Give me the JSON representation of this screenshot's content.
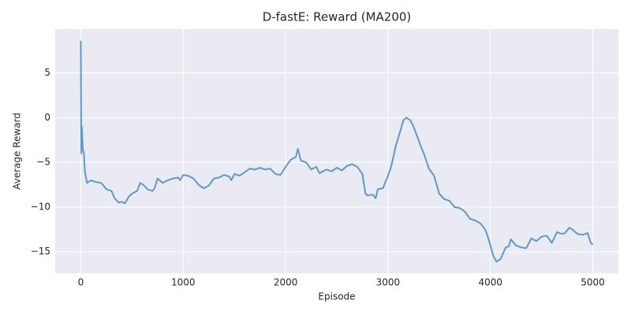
{
  "chart_data": {
    "type": "line",
    "title": "D-fastE: Reward (MA200)",
    "x_label": "Episode",
    "y_label": "Average Reward",
    "x": [
      0,
      5,
      10,
      20,
      30,
      40,
      60,
      100,
      150,
      200,
      250,
      300,
      330,
      370,
      400,
      430,
      470,
      500,
      550,
      580,
      620,
      650,
      700,
      720,
      750,
      800,
      850,
      900,
      950,
      970,
      1000,
      1050,
      1100,
      1150,
      1200,
      1250,
      1300,
      1350,
      1400,
      1450,
      1470,
      1500,
      1550,
      1600,
      1650,
      1700,
      1750,
      1800,
      1850,
      1900,
      1950,
      2000,
      2050,
      2100,
      2120,
      2150,
      2200,
      2250,
      2300,
      2330,
      2400,
      2450,
      2500,
      2550,
      2600,
      2650,
      2700,
      2750,
      2780,
      2800,
      2850,
      2880,
      2900,
      2950,
      3000,
      3030,
      3080,
      3120,
      3150,
      3180,
      3220,
      3260,
      3330,
      3350,
      3400,
      3450,
      3500,
      3550,
      3600,
      3650,
      3700,
      3750,
      3800,
      3850,
      3900,
      3950,
      3980,
      4030,
      4060,
      4100,
      4150,
      4180,
      4200,
      4250,
      4300,
      4350,
      4400,
      4450,
      4500,
      4550,
      4600,
      4650,
      4700,
      4730,
      4770,
      4800,
      4850,
      4900,
      4950,
      4980,
      5000
    ],
    "series": [
      {
        "color": "#5b9bcb",
        "values": [
          8.6,
          -4,
          -1,
          -3.5,
          -4,
          -6,
          -7.3,
          -7,
          -7.2,
          -7.3,
          -8,
          -8.2,
          -9,
          -9.5,
          -9.4,
          -9.6,
          -8.8,
          -8.5,
          -8.2,
          -7.3,
          -7.6,
          -8,
          -8.2,
          -7.9,
          -6.8,
          -7.3,
          -7,
          -6.8,
          -6.7,
          -7,
          -6.4,
          -6.5,
          -6.8,
          -7.5,
          -7.9,
          -7.6,
          -6.8,
          -6.7,
          -6.4,
          -6.6,
          -7,
          -6.3,
          -6.5,
          -6.1,
          -5.7,
          -5.8,
          -5.6,
          -5.8,
          -5.7,
          -6.3,
          -6.4,
          -5.5,
          -4.7,
          -4.4,
          -3.5,
          -4.8,
          -5,
          -5.8,
          -5.5,
          -6.2,
          -5.8,
          -6,
          -5.6,
          -5.9,
          -5.4,
          -5.2,
          -5.5,
          -6.3,
          -8.5,
          -8.7,
          -8.6,
          -9,
          -8,
          -7.9,
          -6.5,
          -5.5,
          -3,
          -1.5,
          -0.3,
          0,
          -0.3,
          -1.3,
          -3.5,
          -4,
          -5.7,
          -6.5,
          -8.5,
          -9.1,
          -9.3,
          -10,
          -10.1,
          -10.5,
          -11.3,
          -11.5,
          -11.8,
          -12.5,
          -13.5,
          -15.5,
          -16.1,
          -15.8,
          -14.5,
          -14.4,
          -13.6,
          -14.3,
          -14.5,
          -14.6,
          -13.5,
          -13.8,
          -13.3,
          -13.2,
          -14,
          -12.8,
          -13,
          -12.9,
          -12.3,
          -12.5,
          -13,
          -13.1,
          -12.9,
          -14,
          -14.2
        ]
      }
    ],
    "xlim": [
      -250,
      5250
    ],
    "ylim": [
      -17.4,
      9.9
    ],
    "xticks": [
      0,
      1000,
      2000,
      3000,
      4000,
      5000
    ],
    "yticks": [
      {
        "value": -15,
        "label": "−15"
      },
      {
        "value": -10,
        "label": "−10"
      },
      {
        "value": -5,
        "label": "−5"
      },
      0,
      5
    ],
    "grid": true
  }
}
